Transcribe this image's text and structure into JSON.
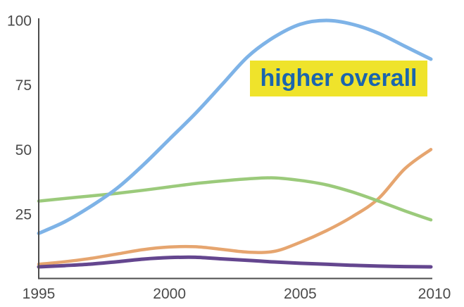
{
  "chart_data": {
    "type": "line",
    "title": "",
    "xlabel": "",
    "ylabel": "",
    "x": [
      1995,
      1996,
      1997,
      1998,
      1999,
      2000,
      2001,
      2002,
      2003,
      2004,
      2005,
      2006,
      2007,
      2008,
      2009,
      2010
    ],
    "series": [
      {
        "name": "orange",
        "color": "#e6a56f",
        "stroke_width": 4.5,
        "values": [
          5.5,
          6.5,
          7.8,
          9.5,
          11.2,
          12.2,
          12.3,
          11.3,
          10.2,
          10.5,
          14,
          18.5,
          24,
          31,
          42.5,
          50
        ]
      },
      {
        "name": "green",
        "color": "#9bca7b",
        "stroke_width": 4.5,
        "values": [
          30,
          31,
          32,
          33,
          34.2,
          35.5,
          36.8,
          37.8,
          38.6,
          39,
          38,
          36.3,
          33.5,
          30,
          26.2,
          22.7
        ]
      },
      {
        "name": "blue",
        "color": "#7eb3e7",
        "stroke_width": 5,
        "values": [
          17.5,
          22,
          28,
          35,
          44,
          54,
          64,
          75,
          86,
          93.5,
          98.5,
          100,
          98.5,
          95,
          90,
          85
        ]
      },
      {
        "name": "purple",
        "color": "#64468f",
        "stroke_width": 5,
        "values": [
          4.5,
          5,
          5.6,
          6.5,
          7.5,
          8.1,
          8.2,
          7.6,
          7,
          6.4,
          5.9,
          5.5,
          5.1,
          4.8,
          4.6,
          4.5
        ]
      }
    ],
    "xticks": [
      "1995",
      "2000",
      "2005",
      "2010"
    ],
    "xtick_values": [
      1995,
      2000,
      2005,
      2010
    ],
    "yticks": [
      "25",
      "50",
      "75",
      "100"
    ],
    "ytick_values": [
      25,
      50,
      75,
      100
    ],
    "xlim": [
      1995,
      2010
    ],
    "ylim": [
      0,
      100.8
    ],
    "grid": false,
    "legend": "none",
    "axis_color": "#4d4d4d",
    "tick_label_color": "#4a4a4a",
    "annotations": [
      {
        "text": "higher overall",
        "bg_color": "#efe32b",
        "text_color": "#1a65ae"
      }
    ]
  }
}
